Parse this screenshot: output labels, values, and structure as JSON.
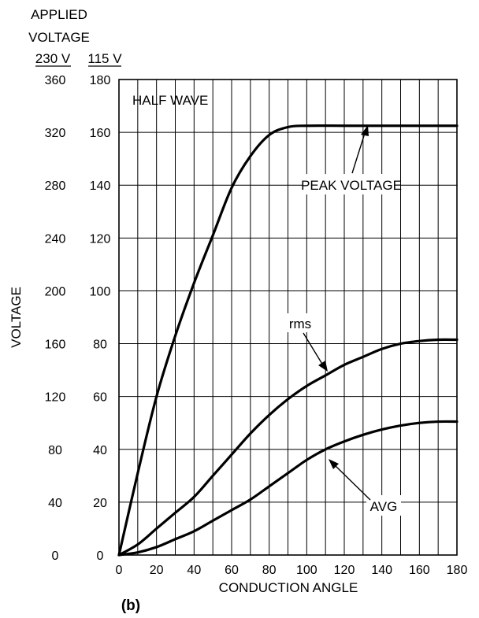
{
  "header": {
    "line1": "APPLIED",
    "line2": "VOLTAGE",
    "col_230": "230 V",
    "col_115": "115 V"
  },
  "panel_label": "(b)",
  "chart_data": {
    "type": "line",
    "title": "HALF WAVE",
    "xlabel": "CONDUCTION ANGLE",
    "ylabel": "VOLTAGE",
    "xlim": [
      0,
      180
    ],
    "ylim": [
      0,
      180
    ],
    "ylim_secondary_230V": [
      0,
      360
    ],
    "grid": true,
    "x_ticks": [
      0,
      20,
      40,
      60,
      80,
      100,
      120,
      140,
      160,
      180
    ],
    "y_ticks_115V": [
      0,
      20,
      40,
      60,
      80,
      100,
      120,
      140,
      160,
      180
    ],
    "y_ticks_230V": [
      0,
      40,
      80,
      120,
      160,
      200,
      240,
      280,
      320,
      360
    ],
    "series": [
      {
        "name": "PEAK VOLTAGE",
        "x": [
          0,
          10,
          20,
          30,
          40,
          50,
          60,
          70,
          80,
          90,
          100,
          120,
          140,
          160,
          180
        ],
        "y": [
          0,
          31,
          60,
          83,
          103,
          121,
          139,
          151,
          159,
          162,
          162.5,
          162.5,
          162.5,
          162.5,
          162.5
        ]
      },
      {
        "name": "rms",
        "x": [
          0,
          10,
          20,
          30,
          40,
          50,
          60,
          70,
          80,
          90,
          100,
          110,
          120,
          130,
          140,
          150,
          160,
          170,
          180
        ],
        "y": [
          0,
          4,
          10,
          16,
          22,
          30,
          38,
          46,
          53,
          59,
          64,
          68,
          72,
          75,
          78,
          80,
          81,
          81.5,
          81.5
        ]
      },
      {
        "name": "AVG",
        "x": [
          0,
          10,
          20,
          30,
          40,
          50,
          60,
          70,
          80,
          90,
          100,
          110,
          120,
          130,
          140,
          150,
          160,
          170,
          180
        ],
        "y": [
          0,
          1,
          3,
          6,
          9,
          13,
          17,
          21,
          26,
          31,
          36,
          40,
          43,
          45.5,
          47.5,
          49,
          50,
          50.5,
          50.5
        ]
      }
    ]
  }
}
